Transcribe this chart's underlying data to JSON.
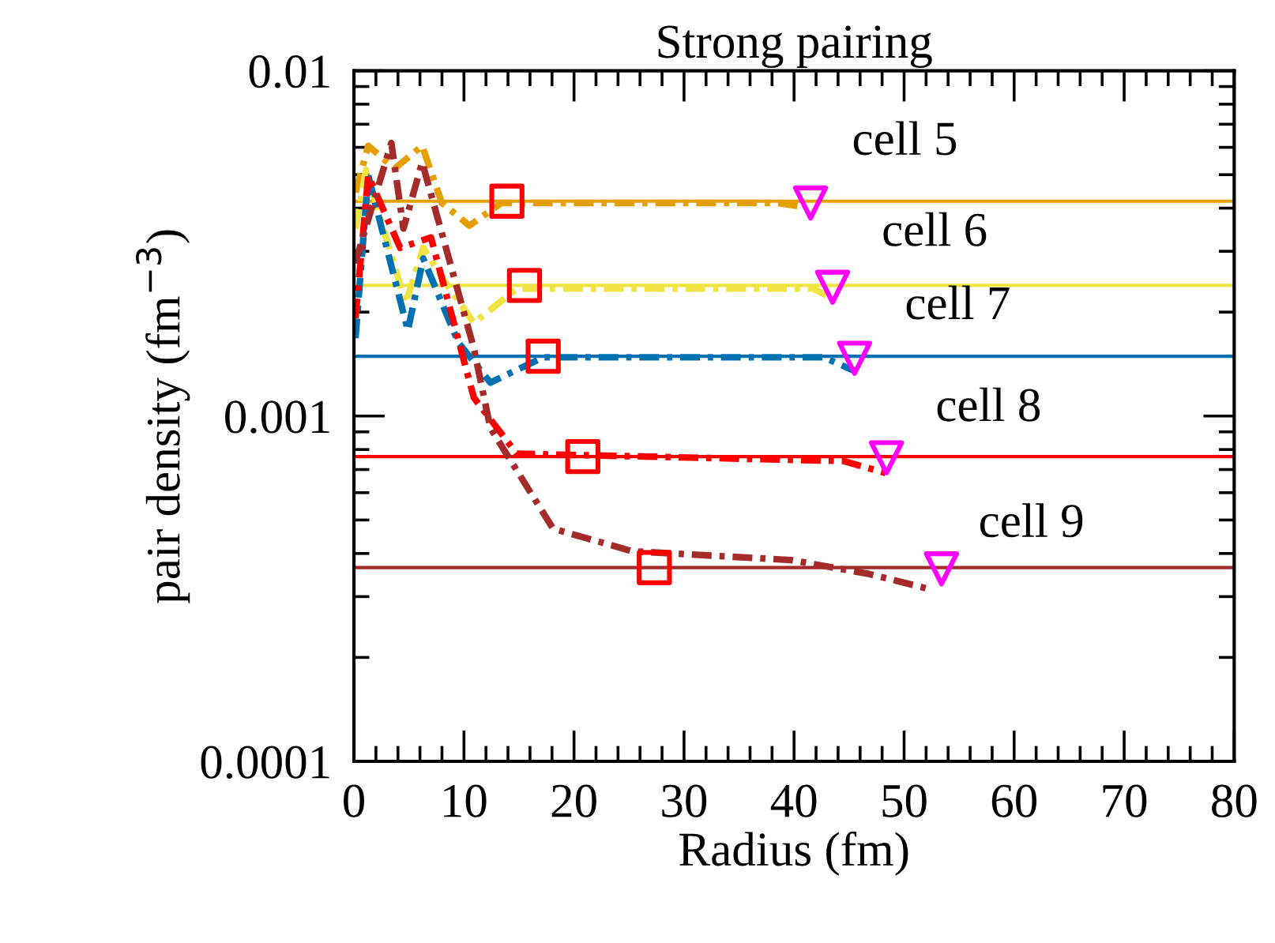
{
  "chart_data": {
    "type": "line",
    "title": "Strong pairing",
    "xlabel": "Radius (fm)",
    "ylabel": "pair density (fm$^{−3}$)",
    "log": "y",
    "xlim": [
      0,
      80
    ],
    "xticks": [
      0,
      10,
      20,
      30,
      40,
      50,
      60,
      70,
      80
    ],
    "ylim": [
      0.0001,
      0.01
    ],
    "yticks": [
      {
        "value": 0.0001,
        "label": "0.0001"
      },
      {
        "value": 0.001,
        "label": "0.001"
      },
      {
        "value": 0.01,
        "label": "0.01"
      }
    ],
    "grid": false,
    "legend": false,
    "series": [
      {
        "name": "cell 5",
        "color": "#e69f00",
        "line_style": "dashdot",
        "marker": "none",
        "x": [
          0.14,
          1.3,
          3.7,
          6.2,
          8.0,
          10.5,
          13.4,
          38.6,
          40.7
        ],
        "values": [
          0.00444,
          0.00606,
          0.00521,
          0.00606,
          0.00414,
          0.00356,
          0.00414,
          0.00414,
          0.00404
        ]
      },
      {
        "name": "cell 6",
        "color": "#f0e442",
        "line_style": "dashdot",
        "marker": "none",
        "x": [
          0.14,
          1.1,
          4.7,
          6.3,
          8.3,
          10.9,
          14.8,
          41.7,
          43.4
        ],
        "values": [
          0.00349,
          0.00516,
          0.00212,
          0.00307,
          0.00244,
          0.00186,
          0.00234,
          0.00234,
          0.0022
        ]
      },
      {
        "name": "cell 7",
        "color": "#0072b2",
        "line_style": "dashdot",
        "marker": "none",
        "x": [
          0.14,
          1.3,
          4.9,
          6.3,
          9.5,
          12.4,
          17.2,
          42.7,
          45.5
        ],
        "values": [
          0.00168,
          0.00497,
          0.00177,
          0.00286,
          0.00163,
          0.00125,
          0.00148,
          0.00148,
          0.00135
        ]
      },
      {
        "name": "cell 8",
        "color": "#ff0000",
        "line_style": "dashdot",
        "marker": "none",
        "x": [
          0.14,
          1.3,
          4.2,
          7.0,
          10.9,
          14.8,
          44.5,
          48.3
        ],
        "values": [
          0.00192,
          0.00497,
          0.00307,
          0.00329,
          0.00113,
          0.000778,
          0.000741,
          0.000684
        ]
      },
      {
        "name": "cell 9",
        "color": "#a52a2a",
        "line_style": "dashdot",
        "marker": "none",
        "x": [
          0.1,
          3.4,
          4.5,
          6.2,
          10.9,
          12.4,
          18.1,
          25.3,
          39.7,
          46.8,
          52.2
        ],
        "values": [
          0.00277,
          0.00618,
          0.00349,
          0.00543,
          0.00157,
          0.000923,
          0.000472,
          0.000406,
          0.000383,
          0.000349,
          0.000316
        ]
      },
      {
        "type": "scatter",
        "color": "#ff0000",
        "marker": "square",
        "x": [
          13.9,
          15.5,
          17.2,
          20.8,
          27.3
        ],
        "values": [
          0.00419,
          0.00239,
          0.00149,
          0.000763,
          0.000364
        ]
      },
      {
        "type": "scatter",
        "color": "#ff00ff",
        "marker": "triangle",
        "x": [
          41.5,
          43.5,
          45.5,
          48.4,
          53.4
        ],
        "values": [
          0.00414,
          0.00236,
          0.00147,
          0.000757,
          0.000361
        ]
      }
    ],
    "ref_lines": [
      {
        "axis": "y",
        "value": 0.00419,
        "color": "#e69f00",
        "line_style": "solid"
      },
      {
        "axis": "y",
        "value": 0.00239,
        "color": "#f0e442",
        "line_style": "solid"
      },
      {
        "axis": "y",
        "value": 0.00149,
        "color": "#0072b2",
        "line_style": "solid"
      },
      {
        "axis": "y",
        "value": 0.000763,
        "color": "#ff0000",
        "line_style": "solid"
      },
      {
        "axis": "y",
        "value": 0.000364,
        "color": "#a52a2a",
        "line_style": "solid"
      }
    ]
  }
}
